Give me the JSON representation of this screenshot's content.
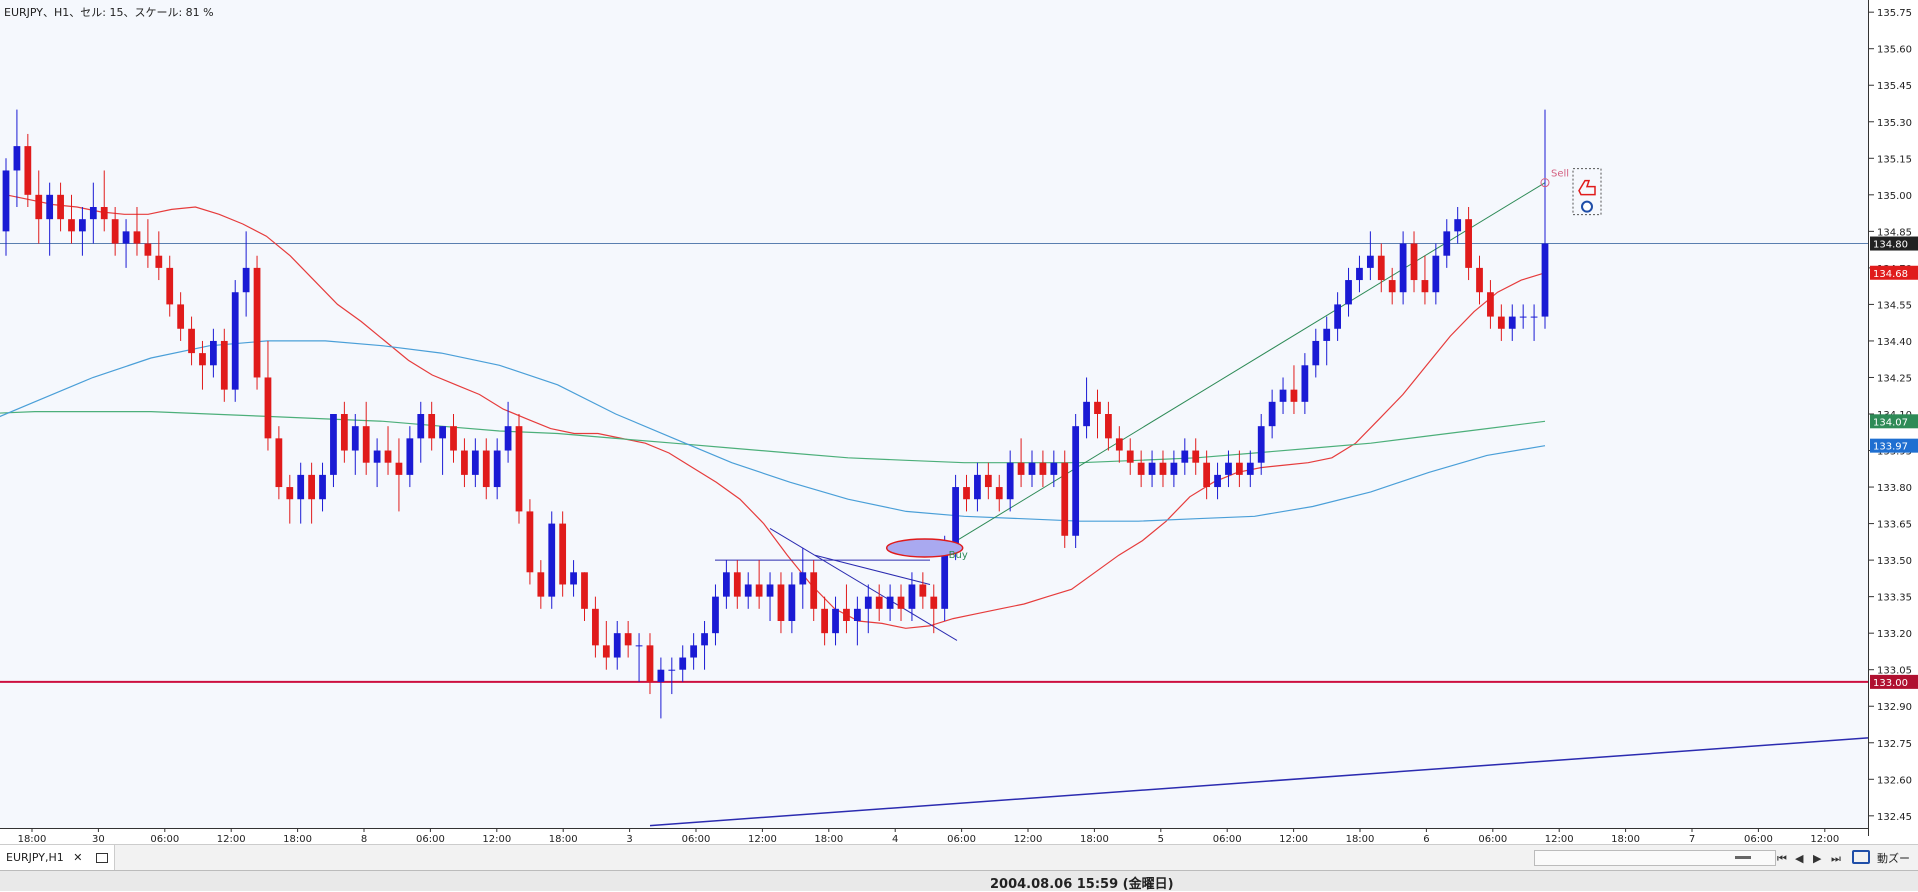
{
  "window": {
    "title": "EURJPY、H1、セル: 15、スケール: 81 %"
  },
  "price_axis": {
    "ticks": [
      "135.75",
      "135.60",
      "135.45",
      "135.30",
      "135.15",
      "135.00",
      "134.85",
      "134.70",
      "134.55",
      "134.40",
      "134.25",
      "134.10",
      "133.95",
      "133.80",
      "133.65",
      "133.50",
      "133.35",
      "133.20",
      "133.05",
      "132.90",
      "132.75",
      "132.60",
      "132.45"
    ],
    "markers": [
      {
        "label": "134.80",
        "price": 134.8,
        "bg": "#222222",
        "fg": "#ffffff"
      },
      {
        "label": "134.68",
        "price": 134.68,
        "bg": "#e01b1b",
        "fg": "#ffffff"
      },
      {
        "label": "134.07",
        "price": 134.07,
        "bg": "#2e8b57",
        "fg": "#ffffff"
      },
      {
        "label": "133.97",
        "price": 133.97,
        "bg": "#1f6fd1",
        "fg": "#ffffff"
      },
      {
        "label": "133.00",
        "price": 133.0,
        "bg": "#b01030",
        "fg": "#ffffff"
      }
    ]
  },
  "time_axis": {
    "labels": [
      "18:00",
      "30",
      "06:00",
      "12:00",
      "18:00",
      "8",
      "06:00",
      "12:00",
      "18:00",
      "3",
      "06:00",
      "12:00",
      "18:00",
      "4",
      "06:00",
      "12:00",
      "18:00",
      "5",
      "06:00",
      "12:00",
      "18:00",
      "6",
      "06:00",
      "12:00",
      "18:00",
      "7",
      "06:00",
      "12:00"
    ]
  },
  "annotations": {
    "sell_label": "Sell",
    "buy_label": "Buy"
  },
  "colors": {
    "bull": "#1a1ad4",
    "bear": "#e01b1b",
    "ma_red": "#e63c3c",
    "ma_green": "#4caf7a",
    "ma_blue": "#4a9fd8",
    "trend_line": "#2b2bb0",
    "support_line": "#cc1040",
    "background": "#f5f8fd"
  },
  "tab_bar": {
    "tab_label": "EURJPY,H1",
    "close_glyph": "✕"
  },
  "status_bar": {
    "datetime": "2004.08.06 15:59 (金曜日)"
  },
  "controls": {
    "nav_first": "⏮",
    "nav_prev": "◀",
    "nav_next": "▶",
    "nav_last": "⏭",
    "auto_zoom_label": "動ズー"
  },
  "chart_data": {
    "type": "candlestick",
    "symbol": "EURJPY",
    "timeframe": "H1",
    "ylim": [
      132.4,
      135.8
    ],
    "candles": [
      [
        134.85,
        135.15,
        134.75,
        135.1
      ],
      [
        135.1,
        135.35,
        134.95,
        135.2
      ],
      [
        135.2,
        135.25,
        134.95,
        135.0
      ],
      [
        135.0,
        135.1,
        134.8,
        134.9
      ],
      [
        134.9,
        135.05,
        134.75,
        135.0
      ],
      [
        135.0,
        135.05,
        134.85,
        134.9
      ],
      [
        134.9,
        135.0,
        134.8,
        134.85
      ],
      [
        134.85,
        134.95,
        134.75,
        134.9
      ],
      [
        134.9,
        135.05,
        134.8,
        134.95
      ],
      [
        134.95,
        135.1,
        134.85,
        134.9
      ],
      [
        134.9,
        134.95,
        134.75,
        134.8
      ],
      [
        134.8,
        134.9,
        134.7,
        134.85
      ],
      [
        134.85,
        134.95,
        134.75,
        134.8
      ],
      [
        134.8,
        134.9,
        134.7,
        134.75
      ],
      [
        134.75,
        134.85,
        134.65,
        134.7
      ],
      [
        134.7,
        134.75,
        134.5,
        134.55
      ],
      [
        134.55,
        134.6,
        134.4,
        134.45
      ],
      [
        134.45,
        134.5,
        134.3,
        134.35
      ],
      [
        134.35,
        134.4,
        134.2,
        134.3
      ],
      [
        134.3,
        134.45,
        134.25,
        134.4
      ],
      [
        134.4,
        134.45,
        134.15,
        134.2
      ],
      [
        134.2,
        134.65,
        134.15,
        134.6
      ],
      [
        134.6,
        134.85,
        134.5,
        134.7
      ],
      [
        134.7,
        134.75,
        134.2,
        134.25
      ],
      [
        134.25,
        134.4,
        133.95,
        134.0
      ],
      [
        134.0,
        134.05,
        133.75,
        133.8
      ],
      [
        133.8,
        133.85,
        133.65,
        133.75
      ],
      [
        133.75,
        133.9,
        133.65,
        133.85
      ],
      [
        133.85,
        133.9,
        133.65,
        133.75
      ],
      [
        133.75,
        133.9,
        133.7,
        133.85
      ],
      [
        133.85,
        134.1,
        133.8,
        134.1
      ],
      [
        134.1,
        134.15,
        133.9,
        133.95
      ],
      [
        133.95,
        134.1,
        133.85,
        134.05
      ],
      [
        134.05,
        134.15,
        133.85,
        133.9
      ],
      [
        133.9,
        134.0,
        133.8,
        133.95
      ],
      [
        133.95,
        134.05,
        133.85,
        133.9
      ],
      [
        133.9,
        134.0,
        133.7,
        133.85
      ],
      [
        133.85,
        134.05,
        133.8,
        134.0
      ],
      [
        134.0,
        134.15,
        133.9,
        134.1
      ],
      [
        134.1,
        134.15,
        133.95,
        134.0
      ],
      [
        134.0,
        134.05,
        133.85,
        134.05
      ],
      [
        134.05,
        134.1,
        133.9,
        133.95
      ],
      [
        133.95,
        134.0,
        133.8,
        133.85
      ],
      [
        133.85,
        134.0,
        133.8,
        133.95
      ],
      [
        133.95,
        134.0,
        133.75,
        133.8
      ],
      [
        133.8,
        134.0,
        133.75,
        133.95
      ],
      [
        133.95,
        134.15,
        133.9,
        134.05
      ],
      [
        134.05,
        134.1,
        133.65,
        133.7
      ],
      [
        133.7,
        133.75,
        133.4,
        133.45
      ],
      [
        133.45,
        133.5,
        133.3,
        133.35
      ],
      [
        133.35,
        133.7,
        133.3,
        133.65
      ],
      [
        133.65,
        133.7,
        133.35,
        133.4
      ],
      [
        133.4,
        133.5,
        133.35,
        133.45
      ],
      [
        133.45,
        133.45,
        133.25,
        133.3
      ],
      [
        133.3,
        133.35,
        133.1,
        133.15
      ],
      [
        133.15,
        133.25,
        133.05,
        133.1
      ],
      [
        133.1,
        133.25,
        133.05,
        133.2
      ],
      [
        133.2,
        133.25,
        133.1,
        133.15
      ],
      [
        133.15,
        133.2,
        133.0,
        133.15
      ],
      [
        133.15,
        133.2,
        132.95,
        133.0
      ],
      [
        133.0,
        133.1,
        132.85,
        133.05
      ],
      [
        133.05,
        133.1,
        132.95,
        133.05
      ],
      [
        133.05,
        133.15,
        133.0,
        133.1
      ],
      [
        133.1,
        133.2,
        133.05,
        133.15
      ],
      [
        133.15,
        133.25,
        133.05,
        133.2
      ],
      [
        133.2,
        133.4,
        133.15,
        133.35
      ],
      [
        133.35,
        133.5,
        133.3,
        133.45
      ],
      [
        133.45,
        133.5,
        133.3,
        133.35
      ],
      [
        133.35,
        133.45,
        133.3,
        133.4
      ],
      [
        133.4,
        133.5,
        133.3,
        133.35
      ],
      [
        133.35,
        133.45,
        133.25,
        133.4
      ],
      [
        133.4,
        133.45,
        133.2,
        133.25
      ],
      [
        133.25,
        133.45,
        133.2,
        133.4
      ],
      [
        133.4,
        133.55,
        133.3,
        133.45
      ],
      [
        133.45,
        133.5,
        133.25,
        133.3
      ],
      [
        133.3,
        133.35,
        133.15,
        133.2
      ],
      [
        133.2,
        133.35,
        133.15,
        133.3
      ],
      [
        133.3,
        133.4,
        133.2,
        133.25
      ],
      [
        133.25,
        133.35,
        133.15,
        133.3
      ],
      [
        133.3,
        133.4,
        133.2,
        133.35
      ],
      [
        133.35,
        133.4,
        133.25,
        133.3
      ],
      [
        133.3,
        133.4,
        133.25,
        133.35
      ],
      [
        133.35,
        133.4,
        133.25,
        133.3
      ],
      [
        133.3,
        133.45,
        133.25,
        133.4
      ],
      [
        133.4,
        133.45,
        133.3,
        133.35
      ],
      [
        133.35,
        133.4,
        133.2,
        133.3
      ],
      [
        133.3,
        133.6,
        133.25,
        133.55
      ],
      [
        133.55,
        133.85,
        133.5,
        133.8
      ],
      [
        133.8,
        133.85,
        133.7,
        133.75
      ],
      [
        133.75,
        133.9,
        133.7,
        133.85
      ],
      [
        133.85,
        133.9,
        133.75,
        133.8
      ],
      [
        133.8,
        133.85,
        133.7,
        133.75
      ],
      [
        133.75,
        133.95,
        133.7,
        133.9
      ],
      [
        133.9,
        134.0,
        133.8,
        133.85
      ],
      [
        133.85,
        133.95,
        133.8,
        133.9
      ],
      [
        133.9,
        133.95,
        133.8,
        133.85
      ],
      [
        133.85,
        133.95,
        133.8,
        133.9
      ],
      [
        133.9,
        133.95,
        133.55,
        133.6
      ],
      [
        133.6,
        134.1,
        133.55,
        134.05
      ],
      [
        134.05,
        134.25,
        134.0,
        134.15
      ],
      [
        134.15,
        134.2,
        134.0,
        134.1
      ],
      [
        134.1,
        134.15,
        133.95,
        134.0
      ],
      [
        134.0,
        134.05,
        133.9,
        133.95
      ],
      [
        133.95,
        134.0,
        133.85,
        133.9
      ],
      [
        133.9,
        133.95,
        133.8,
        133.85
      ],
      [
        133.85,
        133.95,
        133.8,
        133.9
      ],
      [
        133.9,
        133.95,
        133.8,
        133.85
      ],
      [
        133.85,
        133.95,
        133.8,
        133.9
      ],
      [
        133.9,
        134.0,
        133.85,
        133.95
      ],
      [
        133.95,
        134.0,
        133.85,
        133.9
      ],
      [
        133.9,
        133.95,
        133.75,
        133.8
      ],
      [
        133.8,
        133.9,
        133.75,
        133.85
      ],
      [
        133.85,
        133.95,
        133.8,
        133.9
      ],
      [
        133.9,
        133.95,
        133.8,
        133.85
      ],
      [
        133.85,
        133.95,
        133.8,
        133.9
      ],
      [
        133.9,
        134.1,
        133.85,
        134.05
      ],
      [
        134.05,
        134.2,
        134.0,
        134.15
      ],
      [
        134.15,
        134.25,
        134.1,
        134.2
      ],
      [
        134.2,
        134.3,
        134.1,
        134.15
      ],
      [
        134.15,
        134.35,
        134.1,
        134.3
      ],
      [
        134.3,
        134.45,
        134.25,
        134.4
      ],
      [
        134.4,
        134.5,
        134.3,
        134.45
      ],
      [
        134.45,
        134.6,
        134.4,
        134.55
      ],
      [
        134.55,
        134.7,
        134.5,
        134.65
      ],
      [
        134.65,
        134.75,
        134.6,
        134.7
      ],
      [
        134.7,
        134.85,
        134.65,
        134.75
      ],
      [
        134.75,
        134.8,
        134.6,
        134.65
      ],
      [
        134.65,
        134.7,
        134.55,
        134.6
      ],
      [
        134.6,
        134.85,
        134.55,
        134.8
      ],
      [
        134.8,
        134.85,
        134.6,
        134.65
      ],
      [
        134.65,
        134.75,
        134.55,
        134.6
      ],
      [
        134.6,
        134.8,
        134.55,
        134.75
      ],
      [
        134.75,
        134.9,
        134.7,
        134.85
      ],
      [
        134.85,
        134.95,
        134.8,
        134.9
      ],
      [
        134.9,
        134.95,
        134.65,
        134.7
      ],
      [
        134.7,
        134.75,
        134.55,
        134.6
      ],
      [
        134.6,
        134.65,
        134.45,
        134.5
      ],
      [
        134.5,
        134.55,
        134.4,
        134.45
      ],
      [
        134.45,
        134.55,
        134.4,
        134.5
      ],
      [
        134.5,
        134.55,
        134.45,
        134.5
      ],
      [
        134.5,
        134.55,
        134.4,
        134.5
      ],
      [
        134.5,
        135.35,
        134.45,
        134.8
      ]
    ],
    "moving_averages": [
      {
        "color": "red",
        "values": [
          135.0,
          134.98,
          134.96,
          134.95,
          134.93,
          134.92,
          134.92,
          134.94,
          134.95,
          134.92,
          134.88,
          134.83,
          134.75,
          134.65,
          134.55,
          134.48,
          134.4,
          134.32,
          134.26,
          134.22,
          134.18,
          134.12,
          134.08,
          134.04,
          134.02,
          134.02,
          134.0,
          133.98,
          133.94,
          133.88,
          133.82,
          133.75,
          133.65,
          133.52,
          133.4,
          133.3,
          133.25,
          133.24,
          133.22,
          133.23,
          133.26,
          133.28,
          133.3,
          133.32,
          133.35,
          133.38,
          133.45,
          133.52,
          133.58,
          133.66,
          133.76,
          133.82,
          133.86,
          133.88,
          133.89,
          133.9,
          133.92,
          133.98,
          134.08,
          134.18,
          134.3,
          134.42,
          134.52,
          134.6,
          134.65,
          134.68
        ]
      },
      {
        "color": "green",
        "values": [
          134.1,
          134.1,
          134.11,
          134.11,
          134.11,
          134.1,
          134.09,
          134.08,
          134.07,
          134.05,
          134.03,
          134.02,
          134.0,
          133.98,
          133.96,
          133.94,
          133.92,
          133.91,
          133.9,
          133.9,
          133.9,
          133.91,
          133.92,
          133.94,
          133.96,
          133.98,
          134.01,
          134.04,
          134.07
        ]
      },
      {
        "color": "blue",
        "values": [
          133.95,
          134.05,
          134.15,
          134.25,
          134.33,
          134.38,
          134.4,
          134.4,
          134.38,
          134.35,
          134.3,
          134.22,
          134.1,
          134.0,
          133.9,
          133.82,
          133.75,
          133.7,
          133.68,
          133.67,
          133.66,
          133.66,
          133.67,
          133.68,
          133.72,
          133.78,
          133.86,
          133.93,
          133.97
        ]
      }
    ],
    "horizontal_lines": [
      134.8,
      133.0
    ],
    "trades": [
      {
        "side": "Buy",
        "price": 133.55
      },
      {
        "side": "Sell",
        "price": 135.05
      }
    ]
  }
}
